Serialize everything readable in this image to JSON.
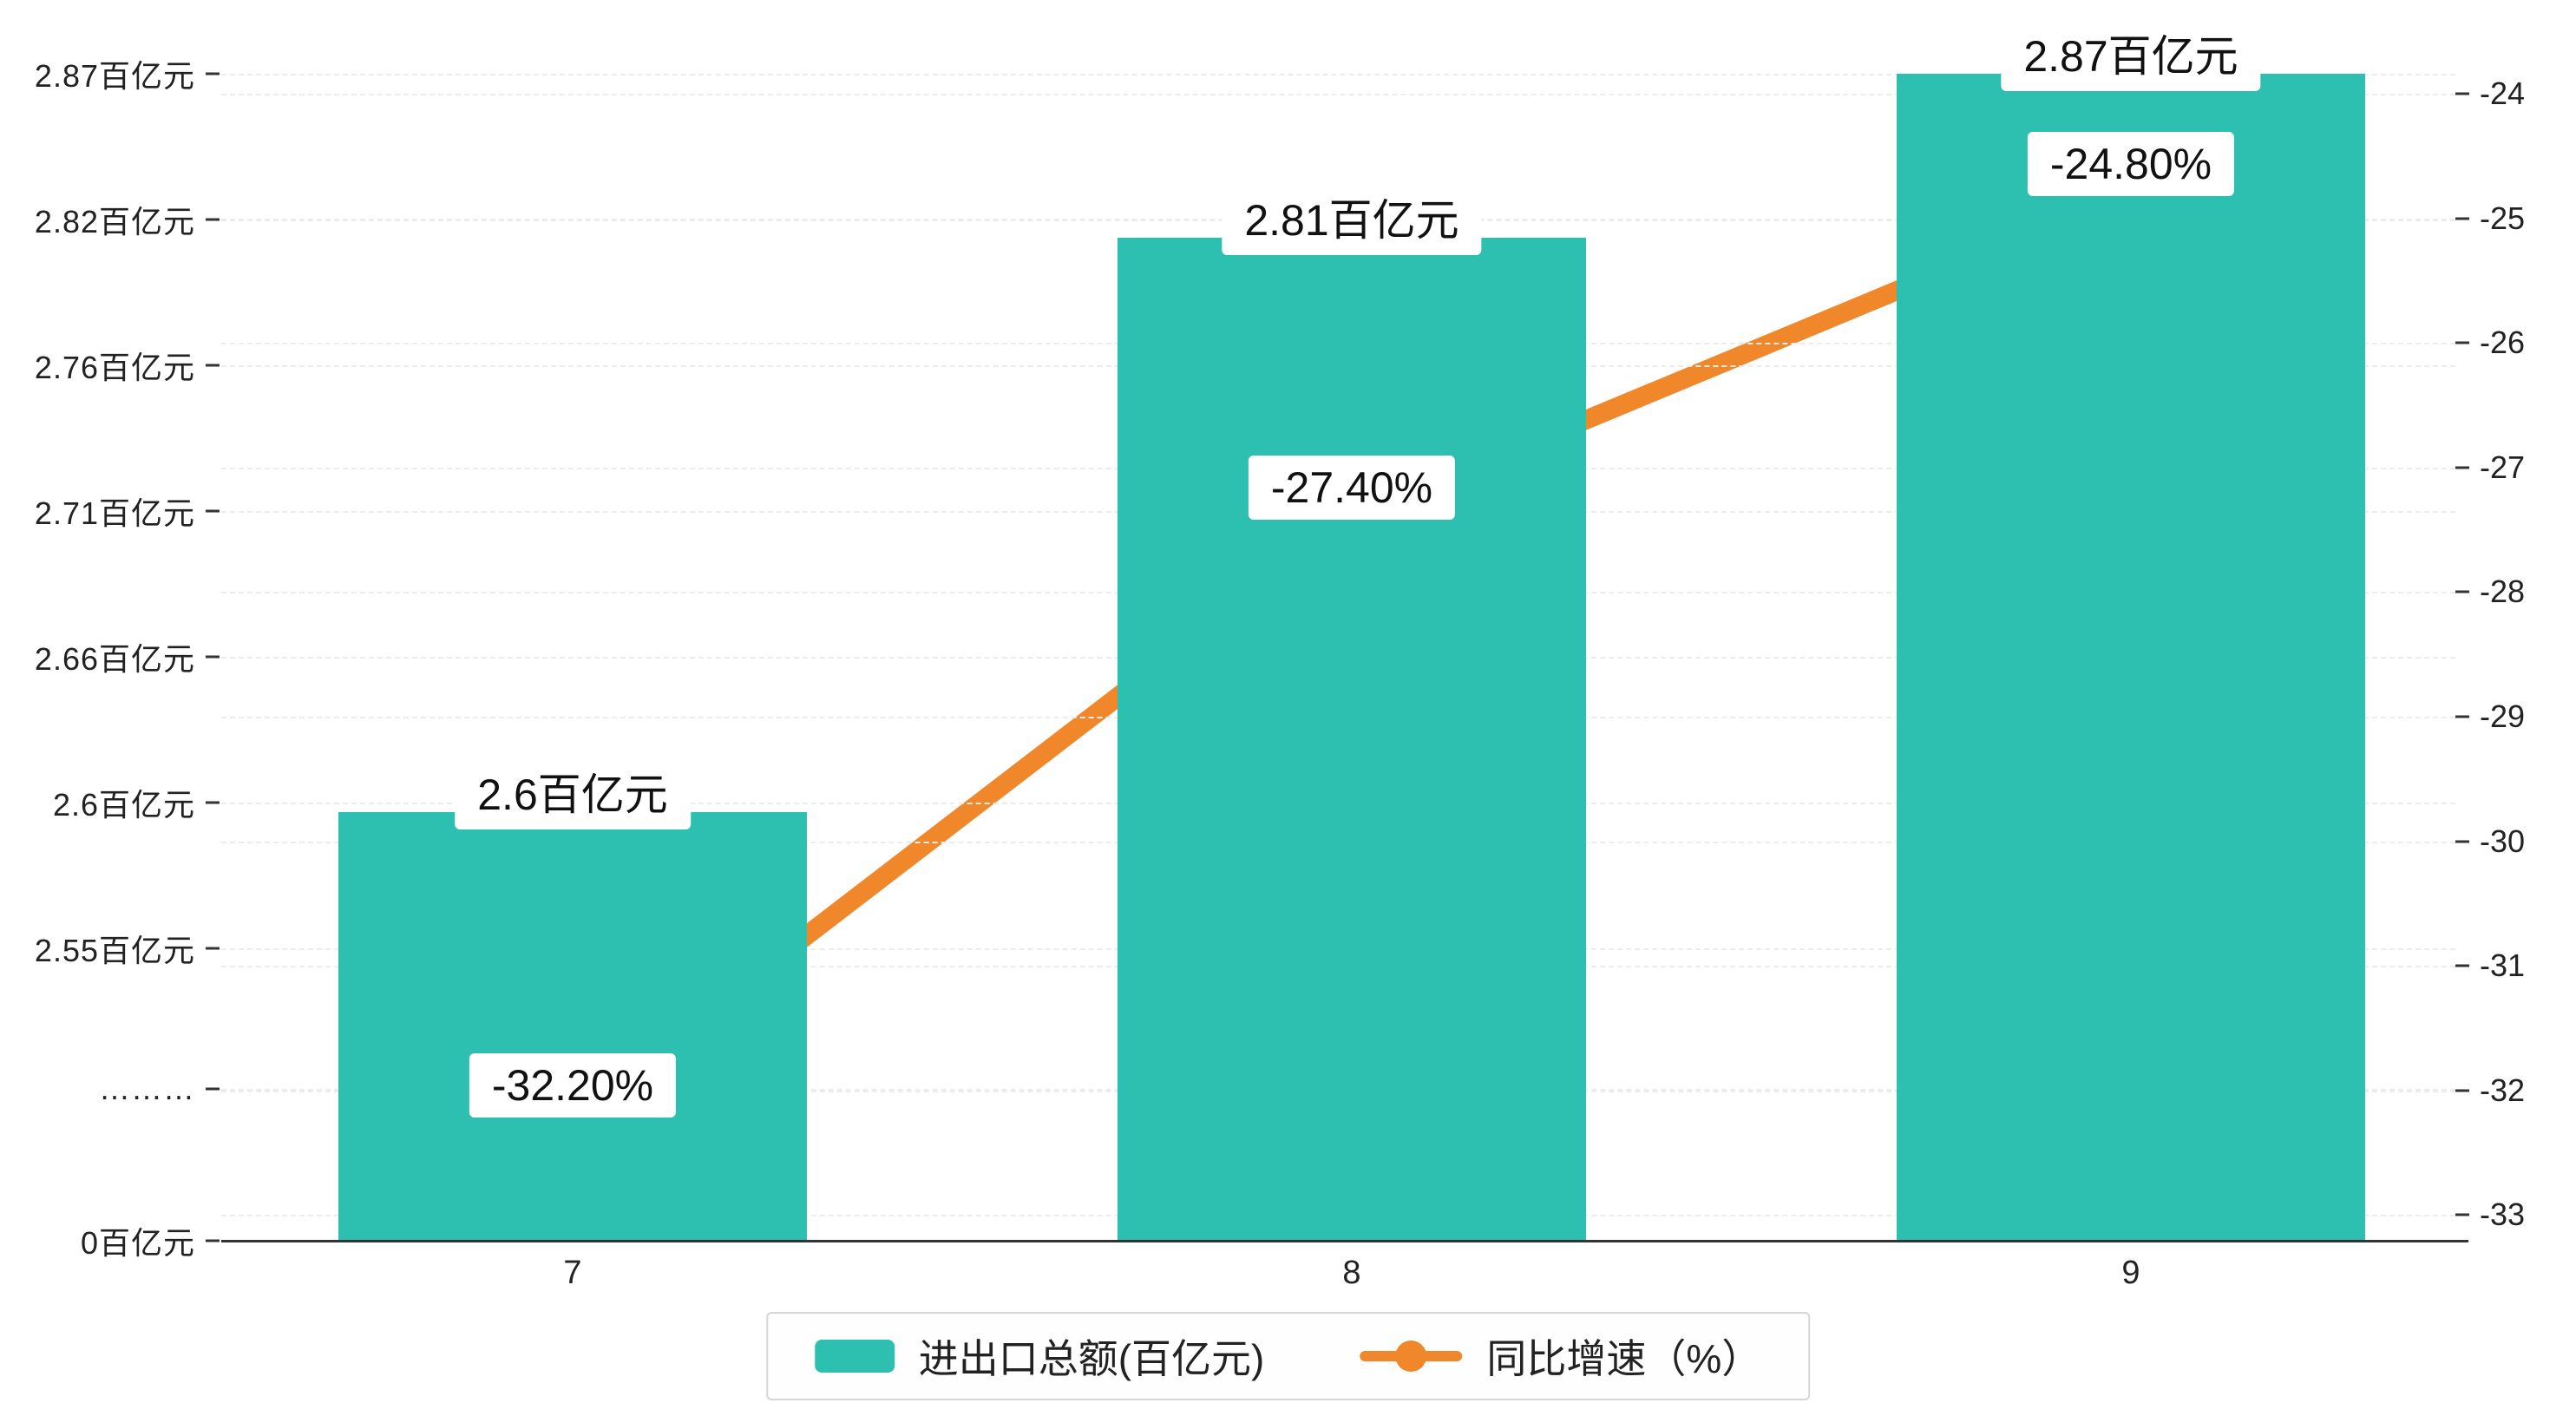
{
  "chart_data": {
    "type": "bar",
    "subtype": "bar-line-combo-dual-axis",
    "categories": [
      "7",
      "8",
      "9"
    ],
    "series": [
      {
        "name": "进出口总额(百亿元)",
        "type": "bar",
        "axis": "left",
        "values": [
          2.6,
          2.81,
          2.87
        ],
        "labels": [
          "2.6百亿元",
          "2.81百亿元",
          "2.87百亿元"
        ],
        "color": "#2dbfb0"
      },
      {
        "name": "同比增速（%）",
        "type": "line",
        "axis": "right",
        "values": [
          -32.2,
          -27.4,
          -24.8
        ],
        "labels": [
          "-32.20%",
          "-27.40%",
          "-24.80%"
        ],
        "color": "#f0872b"
      }
    ],
    "left_axis": {
      "broken_axis": true,
      "ticks_top_to_bottom": [
        "2.87百亿元",
        "2.82百亿元",
        "2.76百亿元",
        "2.71百亿元",
        "2.66百亿元",
        "2.6百亿元",
        "2.55百亿元",
        "………",
        "0百亿元"
      ],
      "unit": "百亿元"
    },
    "right_axis": {
      "ticks_top_to_bottom": [
        "-24",
        "-25",
        "-26",
        "-27",
        "-28",
        "-29",
        "-30",
        "-31",
        "-32",
        "-33"
      ],
      "range": [
        -33,
        -24
      ],
      "unit": "%"
    },
    "grid": "dashed-horizontal",
    "legend_position": "bottom-center",
    "legend": [
      {
        "label": "进出口总额(百亿元)",
        "marker": "bar-swatch",
        "color": "#2dbfb0"
      },
      {
        "label": "同比增速（%）",
        "marker": "line-dot",
        "color": "#f0872b"
      }
    ]
  }
}
